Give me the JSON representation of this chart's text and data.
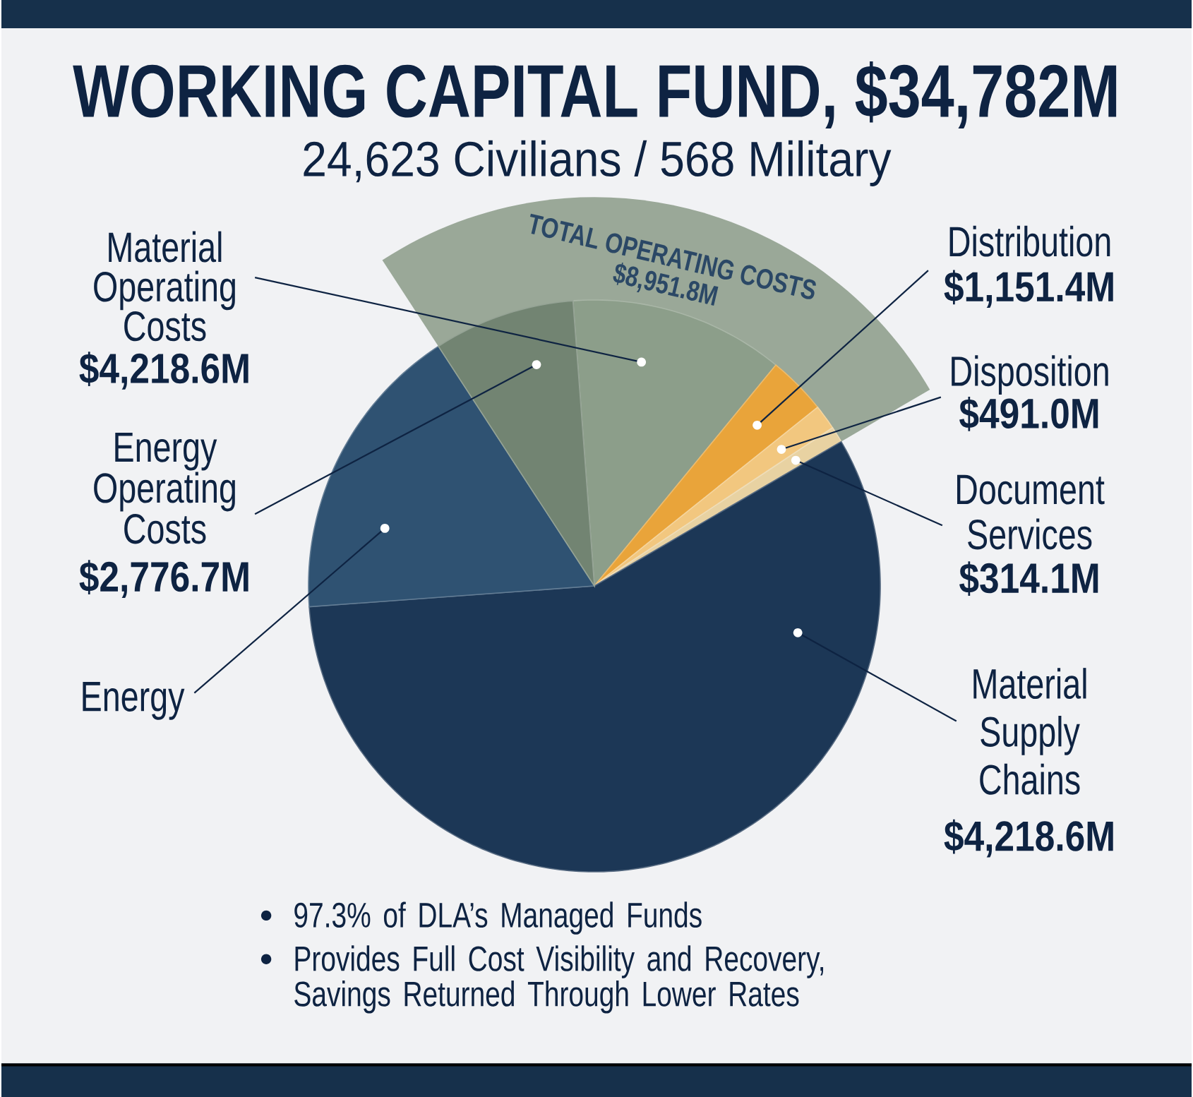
{
  "chart_data": {
    "type": "pie",
    "title": "WORKING CAPITAL FUND, $34,782M",
    "subtitle": "24,623 Civilians / 568 Military",
    "categories": [
      "Material Operating Costs",
      "Distribution",
      "Disposition",
      "Document Services",
      "Material Supply Chains",
      "Energy",
      "Energy Operating Costs"
    ],
    "values": [
      4218.6,
      1151.4,
      491.0,
      314.1,
      19900,
      5900,
      2776.7
    ],
    "value_labels": [
      "$4,218.6M",
      "$1,151.4M",
      "$491.0M",
      "$314.1M",
      null,
      null,
      "$2,776.7M"
    ],
    "colors": [
      "#8c9e8a",
      "#e9a43a",
      "#f2c77f",
      "#e8d2a2",
      "#1c3756",
      "#2f5272",
      "#728472"
    ],
    "annotations": [
      "TOTAL OPERATING COSTS",
      "$8,951.8M",
      "97.3% of DLA’s Managed Funds",
      "Provides Full Cost Visibility and Recovery, Savings Returned Through Lower Rates",
      "$4,218.6M"
    ]
  }
}
